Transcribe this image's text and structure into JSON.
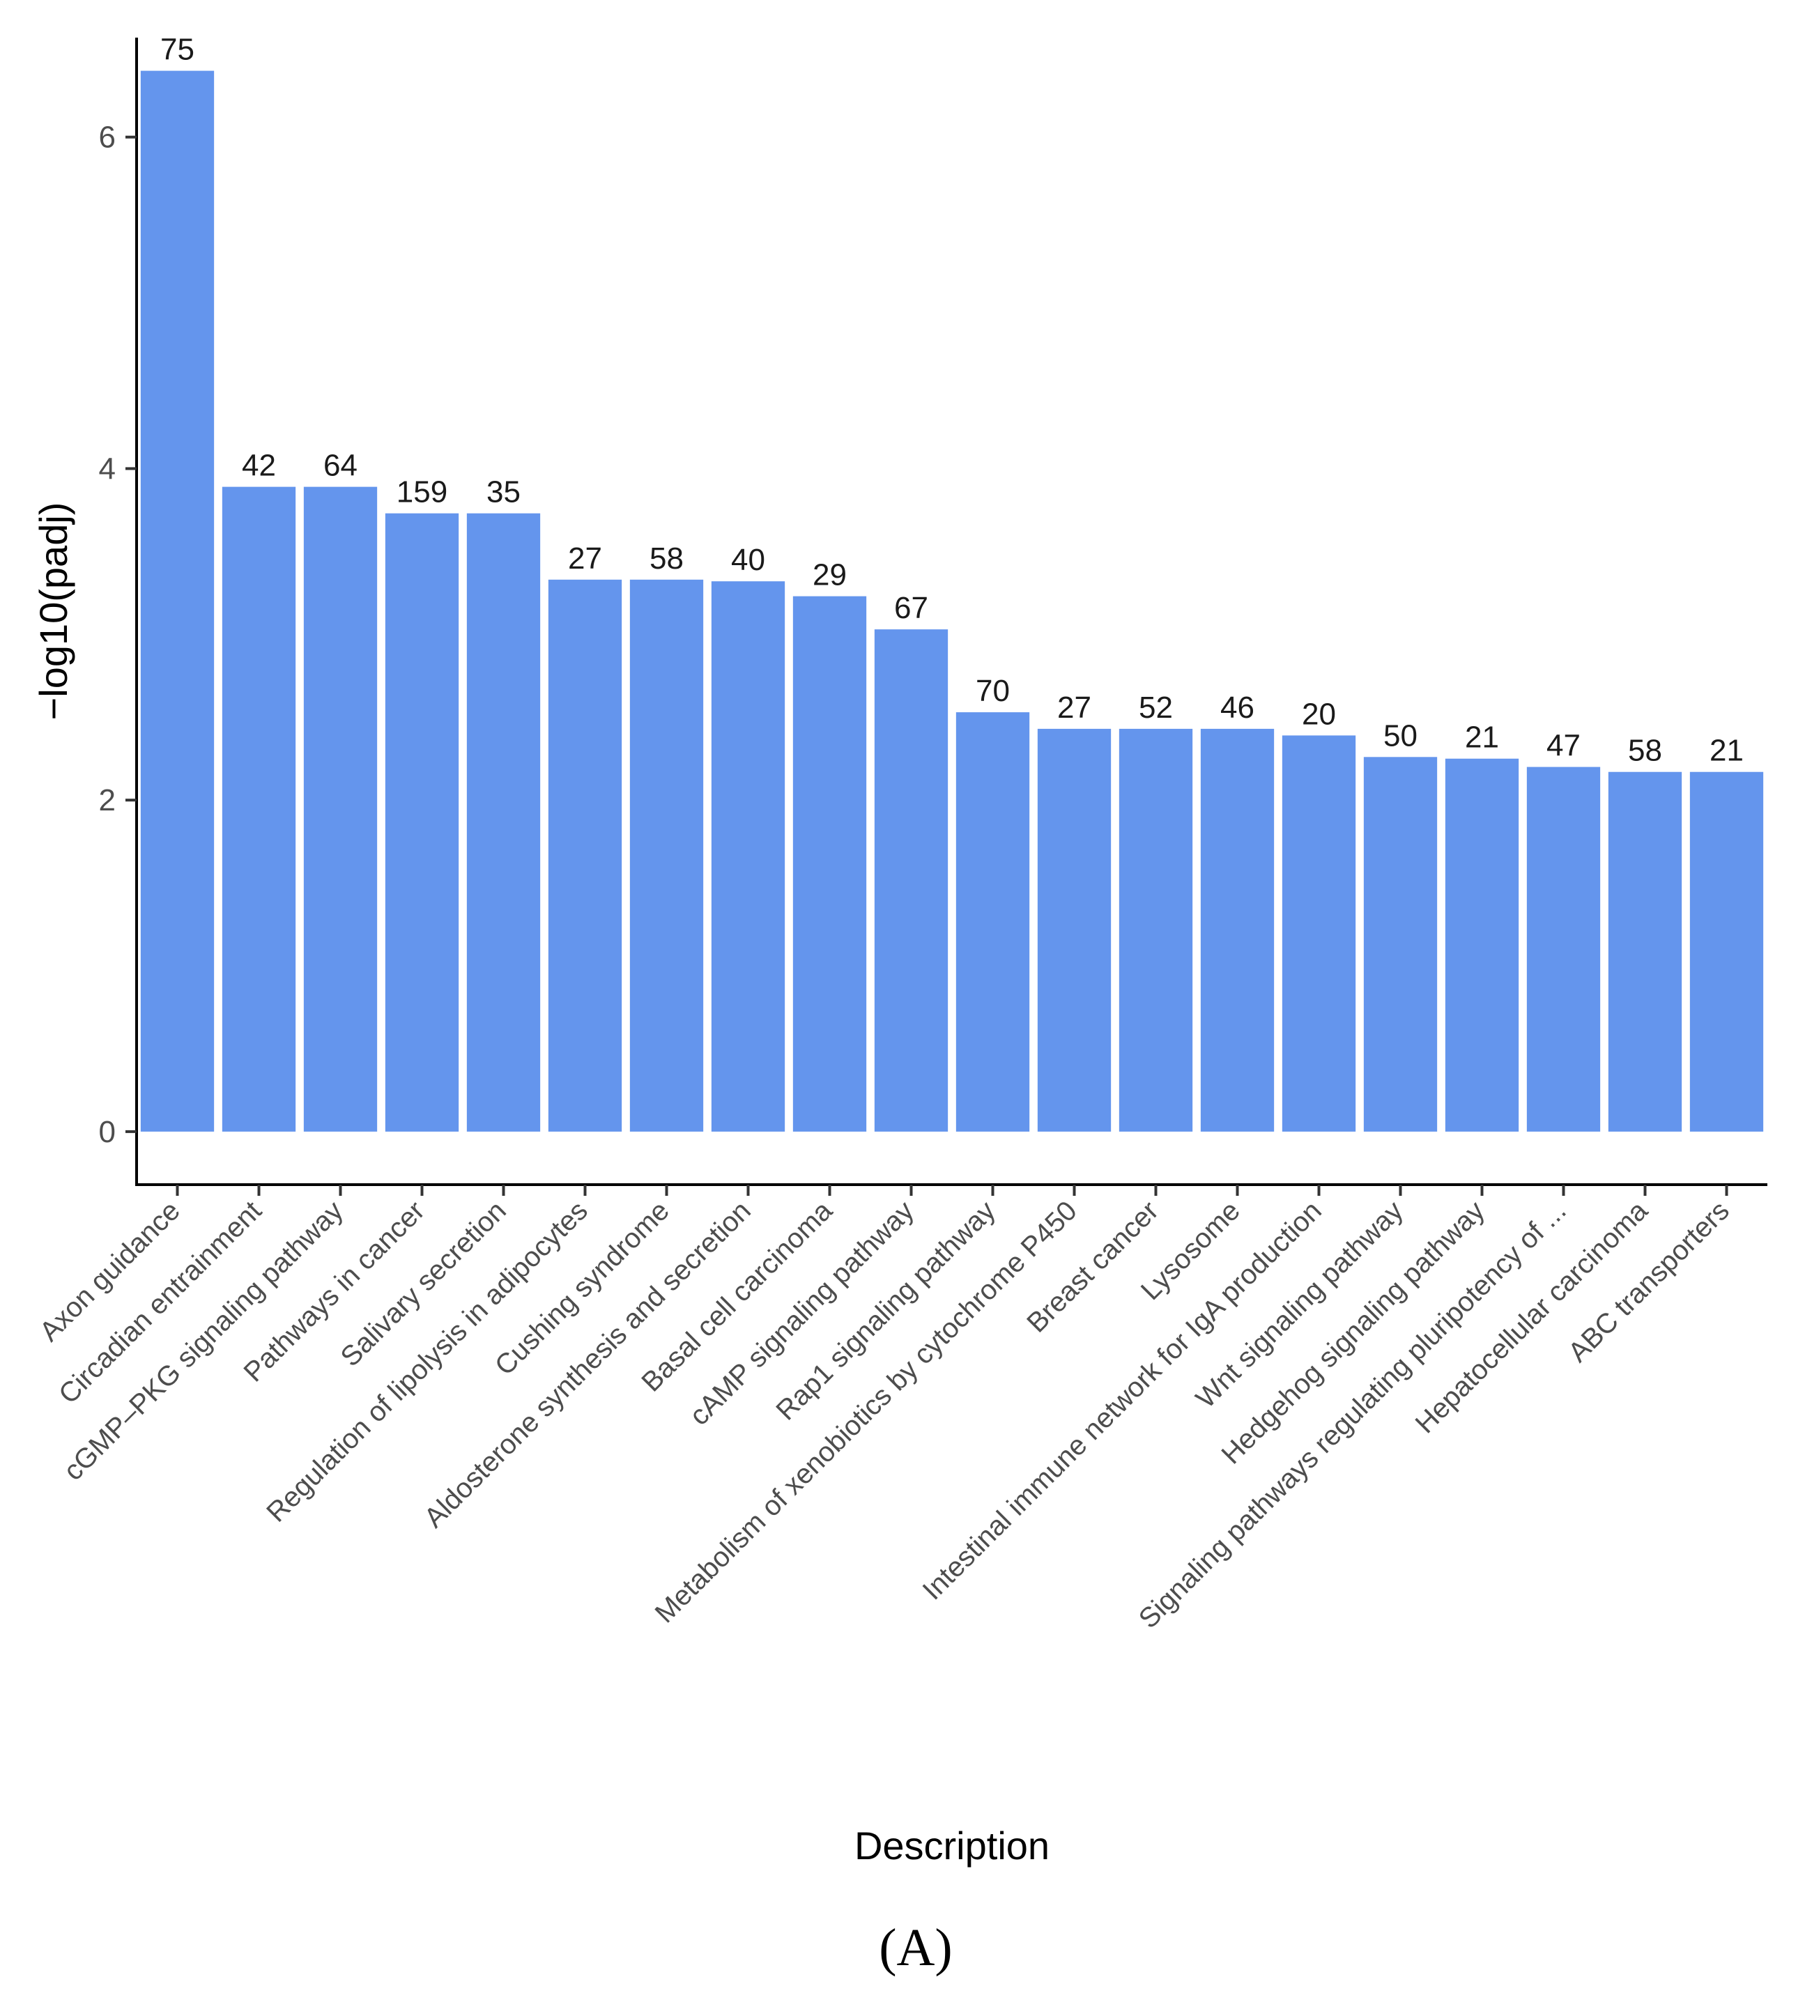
{
  "chart_data": {
    "type": "bar",
    "categories": [
      "Axon guidance",
      "Circadian entrainment",
      "cGMP–PKG signaling pathway",
      "Pathways in cancer",
      "Salivary secretion",
      "Regulation of lipolysis in adipocytes",
      "Cushing syndrome",
      "Aldosterone synthesis and secretion",
      "Basal cell carcinoma",
      "cAMP signaling pathway",
      "Rap1 signaling pathway",
      "Metabolism of xenobiotics by cytochrome P450",
      "Breast cancer",
      "Lysosome",
      "Intestinal immune network for IgA production",
      "Wnt signaling pathway",
      "Hedgehog signaling pathway",
      "Signaling pathways regulating pluripotency of ...",
      "Hepatocellular carcinoma",
      "ABC transporters"
    ],
    "values": [
      6.4,
      3.89,
      3.89,
      3.73,
      3.73,
      3.33,
      3.33,
      3.32,
      3.23,
      3.03,
      2.53,
      2.43,
      2.43,
      2.43,
      2.39,
      2.26,
      2.25,
      2.2,
      2.17,
      2.17
    ],
    "bar_labels": [
      "75",
      "42",
      "64",
      "159",
      "35",
      "27",
      "58",
      "40",
      "29",
      "67",
      "70",
      "27",
      "52",
      "46",
      "20",
      "50",
      "21",
      "47",
      "58",
      "21"
    ],
    "xlabel": "Description",
    "ylabel": "−log10(padj)",
    "yticks": [
      0,
      2,
      4,
      6
    ],
    "ytick_labels": [
      "0",
      "2",
      "4",
      "6"
    ],
    "ylim": [
      -0.32,
      6.6
    ],
    "bar_color": "#6495ED",
    "grid": false
  },
  "panel_label": "(A)"
}
